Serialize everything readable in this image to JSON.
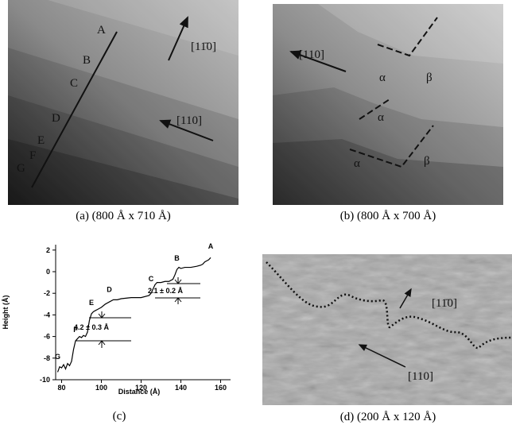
{
  "panels": [
    {
      "caption": "(a)  (800 Å x 710 Å)",
      "labels": [
        "A",
        "B",
        "C",
        "D",
        "E",
        "F",
        "G",
        "[11̄0]",
        "[110]"
      ]
    },
    {
      "caption": "(b) (800 Å x 700 Å)",
      "labels": [
        "[110]",
        "α",
        "β",
        "α",
        "α",
        "β"
      ]
    },
    {
      "caption": "(c)"
    },
    {
      "caption": "(d) (200 Å x 120 Å)",
      "labels": [
        "[11̄0]",
        "[110]"
      ]
    }
  ],
  "chart_data": {
    "type": "line",
    "x_label": "Distance (Å)",
    "y_label": "Height (Å)",
    "xlim": [
      77,
      165
    ],
    "ylim": [
      -10,
      2.5
    ],
    "xticks": [
      80,
      100,
      120,
      140,
      160
    ],
    "yticks": [
      2,
      0,
      -2,
      -4,
      -6,
      -8,
      -10
    ],
    "x": [
      78,
      79,
      80,
      81,
      82,
      83,
      84,
      85,
      86,
      87,
      88,
      89,
      90,
      91,
      92,
      93,
      94,
      95,
      96,
      97,
      98,
      100,
      102,
      104,
      106,
      108,
      110,
      115,
      120,
      124,
      125,
      126,
      127,
      128,
      130,
      132,
      134,
      136,
      137,
      138,
      139,
      140,
      142,
      145,
      148,
      150,
      151,
      152,
      153,
      154,
      155
    ],
    "series": [
      {
        "color": "#000000",
        "values": [
          -9.3,
          -8.8,
          -8.9,
          -8.6,
          -9.0,
          -8.5,
          -8.7,
          -8.3,
          -7.2,
          -6.4,
          -6.2,
          -6.0,
          -6.1,
          -5.9,
          -6.0,
          -5.6,
          -4.5,
          -3.9,
          -3.7,
          -3.6,
          -3.5,
          -3.3,
          -3.0,
          -2.8,
          -2.6,
          -2.6,
          -2.5,
          -2.4,
          -2.4,
          -2.2,
          -2.0,
          -1.6,
          -1.2,
          -1.0,
          -1.0,
          -0.9,
          -0.9,
          -0.7,
          -0.3,
          0.2,
          0.4,
          0.3,
          0.4,
          0.4,
          0.5,
          0.6,
          0.7,
          0.9,
          1.0,
          1.1,
          1.3
        ]
      }
    ],
    "point_labels": [
      {
        "text": "G",
        "x": 78,
        "y": -8.3
      },
      {
        "text": "F",
        "x": 87,
        "y": -5.8
      },
      {
        "text": "E",
        "x": 95,
        "y": -3.3
      },
      {
        "text": "D",
        "x": 104,
        "y": -2.1
      },
      {
        "text": "C",
        "x": 125,
        "y": -1.1
      },
      {
        "text": "B",
        "x": 138,
        "y": 0.8
      },
      {
        "text": "A",
        "x": 155,
        "y": 1.9
      }
    ],
    "annotations": [
      "4.2 ± 0.3 Å",
      "2.1 ± 0.2 Å"
    ]
  }
}
